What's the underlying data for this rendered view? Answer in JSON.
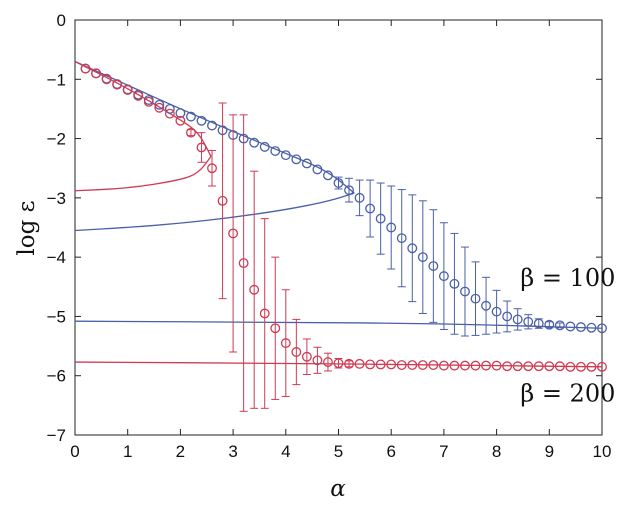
{
  "chart_data": {
    "type": "scatter",
    "xlabel": "α",
    "ylabel": "log ε",
    "xlim": [
      0,
      10
    ],
    "ylim": [
      -7,
      0
    ],
    "xticks": [
      "0",
      "1",
      "2",
      "3",
      "4",
      "5",
      "6",
      "7",
      "8",
      "9",
      "10"
    ],
    "yticks": [
      "0",
      "−1",
      "−2",
      "−3",
      "−4",
      "−5",
      "−6",
      "−7"
    ],
    "grid": false,
    "colors": {
      "blue": "#4a5fa8",
      "red": "#d03a52"
    },
    "annotations": [
      {
        "text": "β = 100",
        "x": 8.45,
        "y": -4.35,
        "color": "blue"
      },
      {
        "text": "β = 200",
        "x": 8.45,
        "y": -6.3,
        "color": "red"
      }
    ],
    "series": [
      {
        "color": "blue",
        "points": [
          [
            0.2,
            -0.82,
            0
          ],
          [
            0.4,
            -0.9,
            0
          ],
          [
            0.6,
            -0.99,
            0
          ],
          [
            0.8,
            -1.08,
            0
          ],
          [
            1.0,
            -1.17,
            0
          ],
          [
            1.2,
            -1.26,
            0
          ],
          [
            1.4,
            -1.35,
            0
          ],
          [
            1.6,
            -1.43,
            0
          ],
          [
            1.8,
            -1.5,
            0
          ],
          [
            2.0,
            -1.57,
            0
          ],
          [
            2.2,
            -1.63,
            0
          ],
          [
            2.4,
            -1.7,
            0
          ],
          [
            2.6,
            -1.78,
            0
          ],
          [
            2.8,
            -1.86,
            0
          ],
          [
            3.0,
            -1.94,
            0
          ],
          [
            3.2,
            -2.0,
            0
          ],
          [
            3.4,
            -2.07,
            0
          ],
          [
            3.6,
            -2.14,
            0
          ],
          [
            3.8,
            -2.21,
            0
          ],
          [
            4.0,
            -2.28,
            0
          ],
          [
            4.2,
            -2.35,
            0
          ],
          [
            4.4,
            -2.42,
            0
          ],
          [
            4.6,
            -2.52,
            0
          ],
          [
            4.8,
            -2.62,
            0
          ],
          [
            5.0,
            -2.75,
            0.1
          ],
          [
            5.2,
            -2.87,
            0.2
          ],
          [
            5.4,
            -3.0,
            0.3
          ],
          [
            5.6,
            -3.18,
            0.48
          ],
          [
            5.8,
            -3.35,
            0.6
          ],
          [
            6.0,
            -3.5,
            0.7
          ],
          [
            6.2,
            -3.68,
            0.82
          ],
          [
            6.4,
            -3.85,
            0.9
          ],
          [
            6.6,
            -4.0,
            0.95
          ],
          [
            6.8,
            -4.15,
            0.95
          ],
          [
            7.0,
            -4.32,
            0.9
          ],
          [
            7.2,
            -4.45,
            0.85
          ],
          [
            7.4,
            -4.58,
            0.75
          ],
          [
            7.6,
            -4.7,
            0.62
          ],
          [
            7.8,
            -4.82,
            0.48
          ],
          [
            8.0,
            -4.92,
            0.36
          ],
          [
            8.2,
            -5.0,
            0.26
          ],
          [
            8.4,
            -5.05,
            0.18
          ],
          [
            8.6,
            -5.09,
            0.12
          ],
          [
            8.8,
            -5.12,
            0.08
          ],
          [
            9.0,
            -5.14,
            0.05
          ],
          [
            9.2,
            -5.15,
            0.04
          ],
          [
            9.4,
            -5.17,
            0
          ],
          [
            9.6,
            -5.18,
            0
          ],
          [
            9.8,
            -5.19,
            0
          ],
          [
            10.0,
            -5.2,
            0
          ]
        ]
      },
      {
        "color": "red",
        "points": [
          [
            0.2,
            -0.82,
            0
          ],
          [
            0.4,
            -0.9,
            0
          ],
          [
            0.6,
            -1.0,
            0
          ],
          [
            0.8,
            -1.09,
            0
          ],
          [
            1.0,
            -1.18,
            0
          ],
          [
            1.2,
            -1.28,
            0
          ],
          [
            1.4,
            -1.38,
            0
          ],
          [
            1.6,
            -1.48,
            0
          ],
          [
            1.8,
            -1.58,
            0
          ],
          [
            2.0,
            -1.7,
            0
          ],
          [
            2.2,
            -1.9,
            0.05
          ],
          [
            2.4,
            -2.15,
            0.25
          ],
          [
            2.6,
            -2.5,
            0.3
          ],
          [
            2.8,
            -3.05,
            1.65
          ],
          [
            3.0,
            -3.6,
            2.0
          ],
          [
            3.2,
            -4.1,
            2.5
          ],
          [
            3.4,
            -4.55,
            2.0
          ],
          [
            3.6,
            -4.95,
            1.6
          ],
          [
            3.8,
            -5.2,
            1.2
          ],
          [
            4.0,
            -5.45,
            0.9
          ],
          [
            4.2,
            -5.6,
            0.55
          ],
          [
            4.4,
            -5.68,
            0.3
          ],
          [
            4.6,
            -5.74,
            0.22
          ],
          [
            4.8,
            -5.77,
            0.15
          ],
          [
            5.0,
            -5.79,
            0.08
          ],
          [
            5.2,
            -5.8,
            0.05
          ],
          [
            5.4,
            -5.8,
            0
          ],
          [
            5.6,
            -5.81,
            0
          ],
          [
            5.8,
            -5.81,
            0
          ],
          [
            6.0,
            -5.81,
            0
          ],
          [
            6.2,
            -5.82,
            0
          ],
          [
            6.4,
            -5.82,
            0
          ],
          [
            6.6,
            -5.82,
            0
          ],
          [
            6.8,
            -5.82,
            0
          ],
          [
            7.0,
            -5.83,
            0
          ],
          [
            7.2,
            -5.83,
            0
          ],
          [
            7.4,
            -5.83,
            0
          ],
          [
            7.6,
            -5.83,
            0
          ],
          [
            7.8,
            -5.83,
            0
          ],
          [
            8.0,
            -5.83,
            0
          ],
          [
            8.2,
            -5.84,
            0
          ],
          [
            8.4,
            -5.84,
            0
          ],
          [
            8.6,
            -5.84,
            0
          ],
          [
            8.8,
            -5.84,
            0
          ],
          [
            9.0,
            -5.84,
            0
          ],
          [
            9.2,
            -5.84,
            0
          ],
          [
            9.4,
            -5.85,
            0
          ],
          [
            9.6,
            -5.85,
            0
          ],
          [
            9.8,
            -5.85,
            0
          ],
          [
            10.0,
            -5.85,
            0
          ]
        ]
      }
    ],
    "theory_curves": [
      {
        "color": "blue",
        "branch": "upper",
        "points": [
          [
            0,
            -0.7
          ],
          [
            1,
            -1.1
          ],
          [
            2,
            -1.5
          ],
          [
            3,
            -1.88
          ],
          [
            4,
            -2.25
          ],
          [
            4.8,
            -2.55
          ],
          [
            5.3,
            -2.92
          ]
        ]
      },
      {
        "color": "blue",
        "branch": "lower",
        "points": [
          [
            0,
            -3.55
          ],
          [
            1,
            -3.5
          ],
          [
            2,
            -3.43
          ],
          [
            3,
            -3.33
          ],
          [
            4,
            -3.2
          ],
          [
            4.8,
            -3.06
          ],
          [
            5.3,
            -2.92
          ]
        ]
      },
      {
        "color": "red",
        "branch": "upper",
        "points": [
          [
            0,
            -0.7
          ],
          [
            1,
            -1.15
          ],
          [
            2,
            -1.68
          ],
          [
            2.35,
            -1.9
          ],
          [
            2.58,
            -2.3
          ]
        ]
      },
      {
        "color": "red",
        "branch": "lower",
        "points": [
          [
            0,
            -2.88
          ],
          [
            1,
            -2.84
          ],
          [
            2,
            -2.7
          ],
          [
            2.35,
            -2.58
          ],
          [
            2.58,
            -2.3
          ]
        ]
      },
      {
        "color": "blue",
        "branch": "flat",
        "points": [
          [
            0,
            -5.08
          ],
          [
            4,
            -5.1
          ],
          [
            7,
            -5.12
          ],
          [
            10,
            -5.2
          ]
        ]
      },
      {
        "color": "red",
        "branch": "flat",
        "points": [
          [
            0,
            -5.77
          ],
          [
            4,
            -5.79
          ],
          [
            7,
            -5.82
          ],
          [
            10,
            -5.85
          ]
        ]
      }
    ]
  }
}
